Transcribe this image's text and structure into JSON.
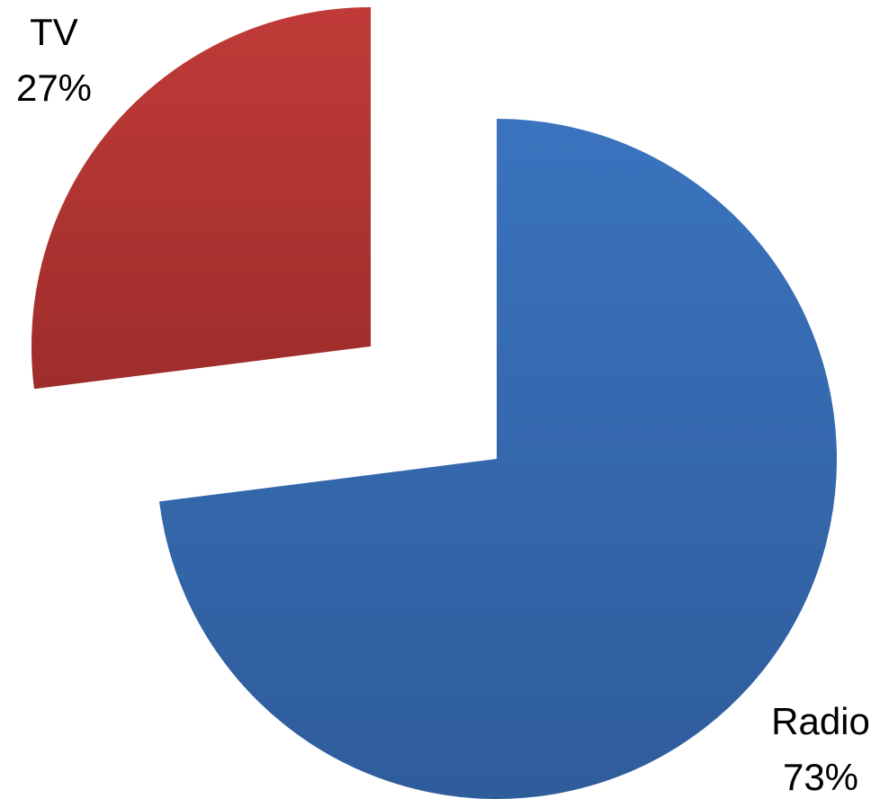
{
  "chart_data": {
    "type": "pie",
    "title": "",
    "categories": [
      "Radio",
      "TV"
    ],
    "values": [
      73,
      27
    ],
    "value_labels": [
      "73%",
      "27%"
    ],
    "start_angle_deg": 0,
    "direction": "clockwise",
    "exploded": true,
    "legend": "none",
    "colors": [
      "#3A73BE",
      "#C03B38"
    ],
    "gradient_dark_colors": [
      "#2F5C9B",
      "#9E2D2B"
    ]
  }
}
